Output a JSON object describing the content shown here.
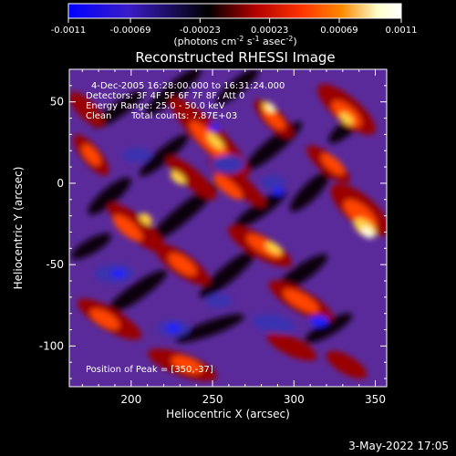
{
  "colorbar": {
    "ticks": [
      "-0.0011",
      "-0.00069",
      "-0.00023",
      "0.00023",
      "0.00069",
      "0.0011"
    ],
    "tick_values": [
      -0.0011,
      -0.00069,
      -0.00023,
      0.00023,
      0.00069,
      0.0011
    ],
    "range": [
      -0.0011,
      0.0011
    ],
    "colormap": "purple-black-red-yellow-white",
    "stops": [
      "#0000ff",
      "#3a1cc8",
      "#000000",
      "#b00000",
      "#ff3300",
      "#ff8800",
      "#ffffcc",
      "#ffffff"
    ],
    "unit_prefix": "(photons cm",
    "unit_exp1": "-2",
    "unit_mid": " s",
    "unit_exp2": "-1",
    "unit_mid2": " asec",
    "unit_exp3": "-2",
    "unit_suffix": ")"
  },
  "chart_data": {
    "type": "heatmap",
    "title": "Reconstructed RHESSI Image",
    "xlabel": "Heliocentric X (arcsec)",
    "ylabel": "Heliocentric Y (arcsec)",
    "xlim": [
      162,
      357
    ],
    "ylim": [
      -125,
      70
    ],
    "x_ticks": [
      200,
      250,
      300,
      350
    ],
    "y_ticks": [
      50,
      0,
      -50,
      -100
    ],
    "peak_position": [
      350,
      -37
    ],
    "annotations": {
      "time": "4-Dec-2005 16:28:00.000 to 16:31:24.000",
      "detectors": "Detectors: 3F 4F 5F 6F 7F 8F, Att 0",
      "energy": "Energy Range: 25.0 - 50.0 keV",
      "clean_label": "Clean",
      "counts": "Total counts: 7.87E+03",
      "peak": "Position of Peak = [350,-37]"
    }
  },
  "footer": {
    "date": "3-May-2022 17:05"
  }
}
